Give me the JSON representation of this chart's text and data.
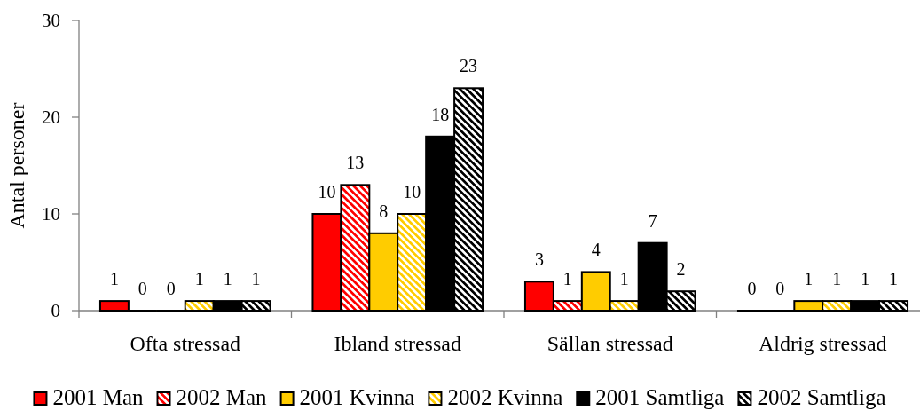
{
  "chart_data": {
    "type": "bar",
    "ylabel": "Antal personer",
    "categories": [
      "Ofta stressad",
      "Ibland stressad",
      "Sällan stressad",
      "Aldrig stressad"
    ],
    "series": [
      {
        "name": "2001 Man",
        "color": "#ff0000",
        "values": [
          1,
          10,
          3,
          0
        ]
      },
      {
        "name": "2002 Man",
        "color": "#ff0000",
        "values": [
          0,
          13,
          1,
          0
        ]
      },
      {
        "name": "2001 Kvinna",
        "color": "#ffcc00",
        "values": [
          0,
          8,
          4,
          1
        ]
      },
      {
        "name": "2002 Kvinna",
        "color": "#ffcc00",
        "values": [
          1,
          10,
          1,
          1
        ]
      },
      {
        "name": "2001 Samtliga",
        "color": "#000000",
        "values": [
          1,
          18,
          7,
          1
        ]
      },
      {
        "name": "2002 Samtliga",
        "color": "#000000",
        "values": [
          1,
          23,
          2,
          1
        ]
      }
    ],
    "ylim": [
      0,
      30
    ],
    "yticks": [
      0,
      10,
      20,
      30
    ],
    "data_labels": true,
    "legend": "bottom"
  }
}
